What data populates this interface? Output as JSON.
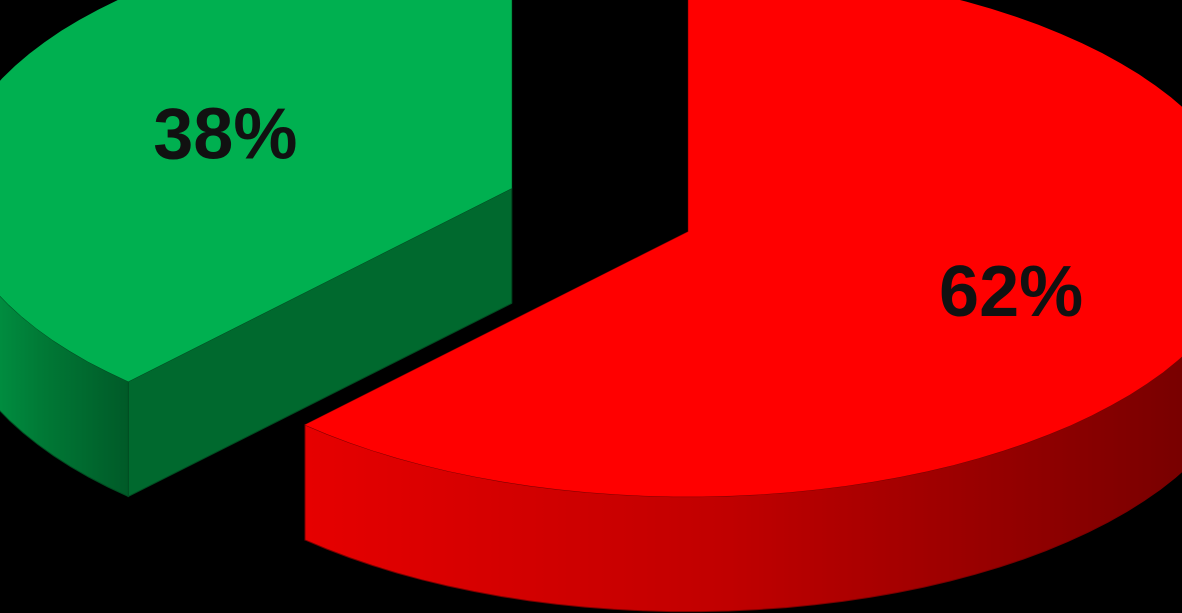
{
  "chart_data": {
    "type": "pie",
    "style": "3d-exploded",
    "categories": [
      "",
      ""
    ],
    "values": [
      62,
      38
    ],
    "data_labels": [
      "62%",
      "38%"
    ],
    "colors": [
      "#ff0000",
      "#00b050"
    ],
    "title": "",
    "legend": "none",
    "background": "#000000"
  }
}
